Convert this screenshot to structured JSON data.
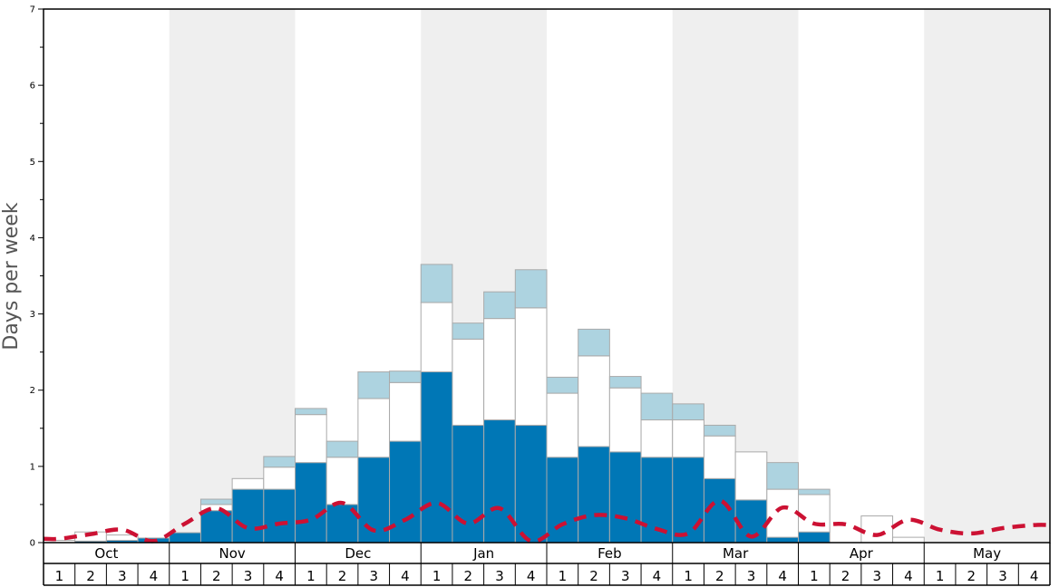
{
  "chart_data": {
    "type": "bar",
    "ylabel": "Days per week",
    "ylim": [
      0,
      7
    ],
    "yticks": [
      "0",
      "1",
      "2",
      "3",
      "4",
      "5",
      "6",
      "7"
    ],
    "months": [
      "Oct",
      "Nov",
      "Dec",
      "Jan",
      "Feb",
      "Mar",
      "Apr",
      "May"
    ],
    "weeks": [
      "1",
      "2",
      "3",
      "4"
    ],
    "colors": {
      "dark_segment": "#0077b6",
      "white_segment": "#ffffff",
      "light_segment": "#add3e0",
      "dashed_line": "#cc1133",
      "shade_band": "#efefef",
      "segment_border": "#aaaaaa"
    },
    "series": [
      {
        "values": [
          0,
          0.02,
          0.03,
          0.06,
          0.13,
          0.42,
          0.7,
          0.7,
          1.05,
          0.5,
          1.12,
          1.33,
          2.24,
          1.54,
          1.61,
          1.54,
          1.12,
          1.26,
          1.19,
          1.12,
          1.12,
          0.84,
          0.56,
          0.07,
          0.14,
          0,
          0,
          0,
          0,
          0,
          0,
          0
        ]
      },
      {
        "values": [
          0.03,
          0.12,
          0.07,
          0,
          0,
          0.08,
          0.14,
          0.29,
          0.63,
          0.62,
          0.77,
          0.77,
          0.91,
          1.13,
          1.33,
          1.54,
          0.84,
          1.19,
          0.84,
          0.49,
          0.49,
          0.56,
          0.63,
          0.63,
          0.49,
          0,
          0.35,
          0.07,
          0,
          0,
          0,
          0
        ]
      },
      {
        "values": [
          0,
          0,
          0,
          0,
          0,
          0.07,
          0,
          0.14,
          0.08,
          0.21,
          0.35,
          0.15,
          0.5,
          0.21,
          0.35,
          0.5,
          0.21,
          0.35,
          0.15,
          0.35,
          0.21,
          0.14,
          0,
          0.35,
          0.07,
          0,
          0,
          0,
          0,
          0,
          0,
          0
        ]
      },
      {
        "values": [
          0.05,
          0.11,
          0.17,
          0.02,
          0.25,
          0.45,
          0.19,
          0.25,
          0.3,
          0.52,
          0.16,
          0.3,
          0.52,
          0.25,
          0.45,
          0.02,
          0.24,
          0.36,
          0.32,
          0.18,
          0.12,
          0.55,
          0.08,
          0.46,
          0.25,
          0.24,
          0.1,
          0.3,
          0.17,
          0.12,
          0.19,
          0.23
        ]
      }
    ]
  }
}
